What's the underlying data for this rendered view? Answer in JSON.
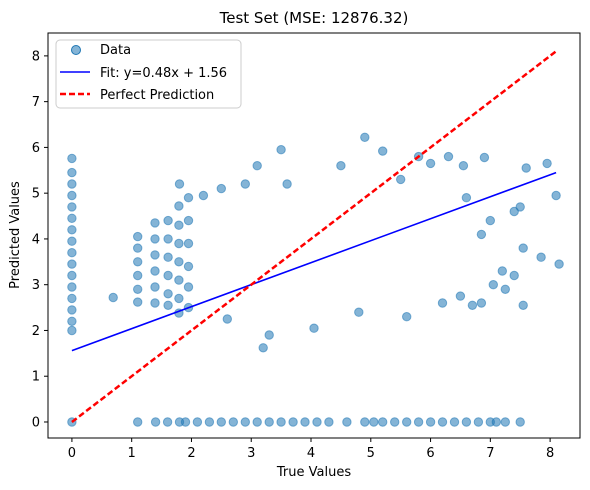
{
  "chart_data": {
    "type": "scatter",
    "title": "Test Set (MSE: 12876.32)",
    "xlabel": "True Values",
    "ylabel": "Predicted Values",
    "xlim": [
      -0.4,
      8.5
    ],
    "ylim": [
      -0.35,
      8.5
    ],
    "xticks": [
      0,
      1,
      2,
      3,
      4,
      5,
      6,
      7,
      8
    ],
    "yticks": [
      0,
      1,
      2,
      3,
      4,
      5,
      6,
      7,
      8
    ],
    "grid": false,
    "legend_position": "upper-left",
    "series": [
      {
        "name": "Data",
        "kind": "scatter",
        "color": "#1f77b4",
        "alpha": 0.55,
        "points": [
          [
            0.0,
            5.76
          ],
          [
            0.0,
            5.45
          ],
          [
            0.0,
            5.2
          ],
          [
            0.0,
            4.95
          ],
          [
            0.0,
            4.7
          ],
          [
            0.0,
            4.45
          ],
          [
            0.0,
            4.2
          ],
          [
            0.0,
            3.95
          ],
          [
            0.0,
            3.7
          ],
          [
            0.0,
            3.45
          ],
          [
            0.0,
            3.2
          ],
          [
            0.0,
            2.95
          ],
          [
            0.0,
            2.7
          ],
          [
            0.0,
            2.45
          ],
          [
            0.0,
            2.2
          ],
          [
            0.0,
            2.0
          ],
          [
            0.0,
            0.0
          ],
          [
            0.69,
            2.72
          ],
          [
            1.1,
            4.05
          ],
          [
            1.1,
            3.8
          ],
          [
            1.1,
            3.5
          ],
          [
            1.1,
            3.2
          ],
          [
            1.1,
            2.9
          ],
          [
            1.1,
            2.62
          ],
          [
            1.39,
            4.35
          ],
          [
            1.39,
            4.0
          ],
          [
            1.39,
            3.65
          ],
          [
            1.39,
            3.3
          ],
          [
            1.39,
            2.95
          ],
          [
            1.39,
            2.6
          ],
          [
            1.61,
            4.4
          ],
          [
            1.61,
            4.0
          ],
          [
            1.61,
            3.6
          ],
          [
            1.61,
            3.2
          ],
          [
            1.61,
            2.8
          ],
          [
            1.61,
            2.55
          ],
          [
            1.79,
            4.72
          ],
          [
            1.79,
            4.3
          ],
          [
            1.79,
            3.9
          ],
          [
            1.79,
            3.5
          ],
          [
            1.79,
            3.1
          ],
          [
            1.79,
            2.7
          ],
          [
            1.79,
            2.38
          ],
          [
            1.95,
            4.9
          ],
          [
            1.95,
            4.4
          ],
          [
            1.95,
            3.9
          ],
          [
            1.95,
            3.4
          ],
          [
            1.95,
            2.95
          ],
          [
            1.95,
            2.5
          ],
          [
            1.8,
            5.2
          ],
          [
            2.2,
            4.95
          ],
          [
            2.5,
            5.1
          ],
          [
            2.6,
            2.25
          ],
          [
            2.9,
            5.2
          ],
          [
            3.1,
            5.6
          ],
          [
            3.2,
            1.62
          ],
          [
            3.3,
            1.9
          ],
          [
            3.5,
            5.95
          ],
          [
            3.6,
            5.2
          ],
          [
            4.05,
            2.05
          ],
          [
            4.5,
            5.6
          ],
          [
            4.8,
            2.4
          ],
          [
            4.9,
            6.22
          ],
          [
            5.2,
            5.92
          ],
          [
            5.5,
            5.3
          ],
          [
            5.6,
            2.3
          ],
          [
            5.8,
            5.8
          ],
          [
            6.0,
            5.65
          ],
          [
            6.2,
            2.6
          ],
          [
            6.3,
            5.8
          ],
          [
            6.5,
            2.75
          ],
          [
            6.55,
            5.6
          ],
          [
            6.7,
            2.55
          ],
          [
            6.9,
            5.78
          ],
          [
            7.0,
            4.4
          ],
          [
            7.05,
            3.0
          ],
          [
            7.2,
            3.3
          ],
          [
            7.4,
            4.6
          ],
          [
            7.5,
            4.7
          ],
          [
            7.6,
            5.55
          ],
          [
            7.85,
            3.6
          ],
          [
            7.95,
            5.65
          ],
          [
            8.1,
            4.95
          ],
          [
            8.15,
            3.45
          ],
          [
            7.4,
            3.2
          ],
          [
            7.55,
            2.55
          ],
          [
            7.55,
            3.8
          ],
          [
            7.25,
            2.9
          ],
          [
            6.85,
            4.1
          ],
          [
            6.6,
            4.9
          ],
          [
            6.85,
            2.6
          ],
          [
            1.1,
            0.0
          ],
          [
            1.4,
            0.0
          ],
          [
            1.6,
            0.0
          ],
          [
            1.8,
            0.0
          ],
          [
            1.9,
            0.0
          ],
          [
            2.1,
            0.0
          ],
          [
            2.3,
            0.0
          ],
          [
            2.5,
            0.0
          ],
          [
            2.7,
            0.0
          ],
          [
            2.9,
            0.0
          ],
          [
            3.1,
            0.0
          ],
          [
            3.3,
            0.0
          ],
          [
            3.5,
            0.0
          ],
          [
            3.7,
            0.0
          ],
          [
            3.9,
            0.0
          ],
          [
            4.1,
            0.0
          ],
          [
            4.3,
            0.0
          ],
          [
            4.6,
            0.0
          ],
          [
            4.9,
            0.0
          ],
          [
            5.05,
            0.0
          ],
          [
            5.2,
            0.0
          ],
          [
            5.4,
            0.0
          ],
          [
            5.6,
            0.0
          ],
          [
            5.8,
            0.0
          ],
          [
            6.0,
            0.0
          ],
          [
            6.2,
            0.0
          ],
          [
            6.4,
            0.0
          ],
          [
            6.6,
            0.0
          ],
          [
            6.8,
            0.0
          ],
          [
            7.0,
            0.0
          ],
          [
            7.1,
            0.0
          ],
          [
            7.25,
            0.0
          ],
          [
            7.5,
            0.0
          ]
        ]
      },
      {
        "name": "Fit: y=0.48x + 1.56",
        "kind": "line",
        "color": "#0000ff",
        "dash": "solid",
        "x": [
          0,
          8.1
        ],
        "y": [
          1.56,
          5.45
        ]
      },
      {
        "name": "Perfect Prediction",
        "kind": "line",
        "color": "#ff0000",
        "dash": "dashed",
        "x": [
          0,
          8.1
        ],
        "y": [
          0,
          8.1
        ]
      }
    ]
  }
}
